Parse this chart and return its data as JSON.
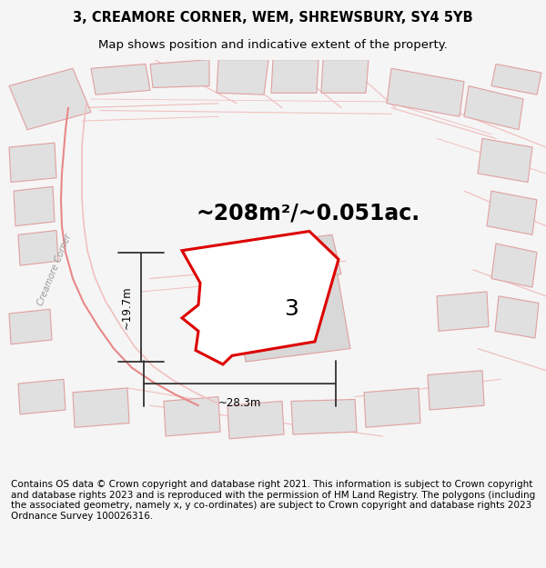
{
  "title_line1": "3, CREAMORE CORNER, WEM, SHREWSBURY, SY4 5YB",
  "title_line2": "Map shows position and indicative extent of the property.",
  "area_text": "~208m²/~0.051ac.",
  "label_width": "~28.3m",
  "label_height": "~19.7m",
  "plot_number": "3",
  "footer_text": "Contains OS data © Crown copyright and database right 2021. This information is subject to Crown copyright and database rights 2023 and is reproduced with the permission of HM Land Registry. The polygons (including the associated geometry, namely x, y co-ordinates) are subject to Crown copyright and database rights 2023 Ordnance Survey 100026316.",
  "bg_color": "#f5f5f5",
  "map_bg": "#ffffff",
  "road_color_light": "#f2c0c0",
  "road_color_medium": "#e88888",
  "plot_fill": "white",
  "plot_edge": "#dd0000",
  "building_fill": "#e0e0e0",
  "building_edge": "#e0a0a0",
  "street_label": "Creamore Corner",
  "title_fontsize": 10.5,
  "subtitle_fontsize": 9.5,
  "area_fontsize": 17,
  "footer_fontsize": 7.5,
  "dim_fontsize": 8.5
}
